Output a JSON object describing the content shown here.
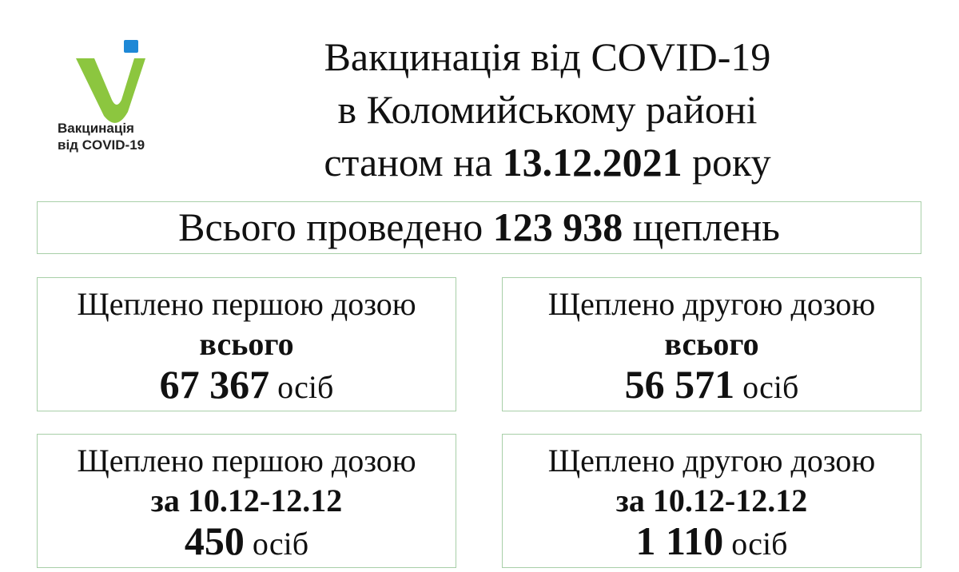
{
  "colors": {
    "logo_green": "#8cc63f",
    "logo_blue": "#1e88d6",
    "border": "#a8cfa8"
  },
  "logo": {
    "line1": "Вакцинація",
    "line2": "від COVID-19"
  },
  "title": {
    "line1": "Вакцинація від COVID-19",
    "line2": "в Коломийському районі",
    "line3_prefix": "станом на",
    "date": "13.12.2021",
    "line3_suffix": "року"
  },
  "total": {
    "prefix": "Всього проведено",
    "value": "123 938",
    "suffix": "щеплень"
  },
  "cards": [
    {
      "label": "Щеплено першою дозою",
      "period": "всього",
      "value": "67 367",
      "unit": "осіб"
    },
    {
      "label": "Щеплено другою дозою",
      "period": "всього",
      "value": "56 571",
      "unit": "осіб"
    },
    {
      "label": "Щеплено першою дозою",
      "period": "за 10.12-12.12",
      "value": "450",
      "unit": "осіб"
    },
    {
      "label": "Щеплено другою дозою",
      "period": "за 10.12-12.12",
      "value": "1 110",
      "unit": "осіб"
    }
  ]
}
